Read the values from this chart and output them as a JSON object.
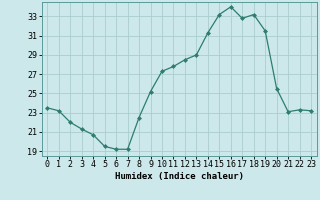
{
  "x": [
    0,
    1,
    2,
    3,
    4,
    5,
    6,
    7,
    8,
    9,
    10,
    11,
    12,
    13,
    14,
    15,
    16,
    17,
    18,
    19,
    20,
    21,
    22,
    23
  ],
  "y": [
    23.5,
    23.2,
    22.0,
    21.3,
    20.7,
    19.5,
    19.2,
    19.2,
    22.5,
    25.2,
    27.3,
    27.8,
    28.5,
    29.0,
    31.3,
    33.2,
    34.0,
    32.8,
    33.2,
    31.5,
    25.5,
    23.1,
    23.3,
    23.2
  ],
  "line_color": "#2e7d6e",
  "marker": "D",
  "marker_size": 2.0,
  "bg_color": "#cce8ea",
  "grid_color": "#aacdd0",
  "xlabel": "Humidex (Indice chaleur)",
  "ylim": [
    18.5,
    34.5
  ],
  "yticks": [
    19,
    21,
    23,
    25,
    27,
    29,
    31,
    33
  ],
  "xlim": [
    -0.5,
    23.5
  ],
  "xticks": [
    0,
    1,
    2,
    3,
    4,
    5,
    6,
    7,
    8,
    9,
    10,
    11,
    12,
    13,
    14,
    15,
    16,
    17,
    18,
    19,
    20,
    21,
    22,
    23
  ],
  "label_fontsize": 6.5,
  "tick_fontsize": 6.0,
  "spine_color": "#5a9a9a"
}
